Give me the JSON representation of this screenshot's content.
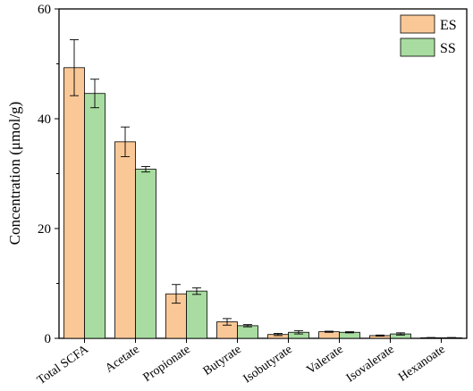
{
  "chart_data": {
    "type": "bar",
    "ylabel": "Concentration (μmol/g)",
    "xlabel": "",
    "ylim": [
      0,
      60
    ],
    "yticks": [
      0,
      20,
      40,
      60
    ],
    "grid": false,
    "legend_position": "top-right",
    "categories": [
      "Total SCFA",
      "Acetate",
      "Propionate",
      "Butyrate",
      "Isobutyrate",
      "Valerate",
      "Isovalerate",
      "Hexanoate"
    ],
    "series": [
      {
        "name": "ES",
        "color": "#fac896",
        "values": [
          49.3,
          35.8,
          8.1,
          3.0,
          0.7,
          1.2,
          0.5,
          0.1
        ],
        "errors": [
          5.1,
          2.7,
          1.7,
          0.6,
          0.2,
          0.1,
          0.1,
          0.05
        ]
      },
      {
        "name": "SS",
        "color": "#a8dca0",
        "values": [
          44.6,
          30.8,
          8.6,
          2.3,
          1.1,
          1.1,
          0.8,
          0.1
        ],
        "errors": [
          2.6,
          0.5,
          0.6,
          0.2,
          0.3,
          0.1,
          0.2,
          0.05
        ]
      }
    ]
  }
}
